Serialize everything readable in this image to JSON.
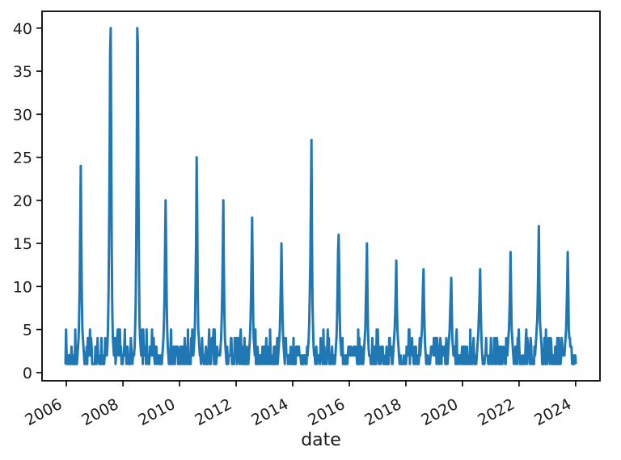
{
  "figure": {
    "kind": "matplotlib-style line plot",
    "background_color": "#ffffff",
    "axis_color": "#000000",
    "tick_label_color": "#1a1a1a"
  },
  "chart_data": {
    "type": "line",
    "title": "",
    "xlabel": "date",
    "ylabel": "",
    "grid": false,
    "legend": null,
    "line_color": "#1f77b4",
    "xlim": [
      2005.14,
      2024.86
    ],
    "ylim": [
      -0.95,
      41.95
    ],
    "x_tick_values": [
      2006,
      2008,
      2010,
      2012,
      2014,
      2016,
      2018,
      2020,
      2022,
      2024
    ],
    "x_tick_labels": [
      "2006",
      "2008",
      "2010",
      "2012",
      "2014",
      "2016",
      "2018",
      "2020",
      "2022",
      "2024"
    ],
    "y_tick_values": [
      0,
      5,
      10,
      15,
      20,
      25,
      30,
      35,
      40
    ],
    "y_tick_labels": [
      "0",
      "5",
      "10",
      "15",
      "20",
      "25",
      "30",
      "35",
      "40"
    ],
    "sampling": "weekly",
    "x_start": 2005.95,
    "x_end": 2024.02,
    "baseline_description": "noisy integer baseline between 1 and 3 with occasional bumps to 4-5",
    "noise_seed": 7,
    "noise_weights": [
      [
        1,
        0.46
      ],
      [
        2,
        0.27
      ],
      [
        3,
        0.15
      ],
      [
        4,
        0.08
      ],
      [
        5,
        0.04
      ]
    ],
    "seasons": [
      {
        "peak_time": 2006.51,
        "peak": 24,
        "profile": [
          2,
          3,
          4,
          6,
          10,
          17,
          24,
          16,
          9,
          5,
          4,
          3,
          2
        ]
      },
      {
        "peak_time": 2007.57,
        "peak": 40,
        "profile": [
          2,
          3,
          5,
          9,
          15,
          24,
          37,
          40,
          28,
          14,
          7,
          4,
          3,
          2
        ]
      },
      {
        "peak_time": 2008.51,
        "peak": 40,
        "profile": [
          2,
          3,
          5,
          8,
          15,
          26,
          40,
          38,
          22,
          12,
          6,
          4,
          3,
          2
        ]
      },
      {
        "peak_time": 2009.51,
        "peak": 20,
        "profile": [
          2,
          3,
          4,
          6,
          9,
          15,
          20,
          14,
          8,
          5,
          3,
          2
        ]
      },
      {
        "peak_time": 2010.6,
        "peak": 25,
        "profile": [
          2,
          3,
          4,
          6,
          10,
          15,
          25,
          18,
          10,
          5,
          4,
          3,
          2
        ]
      },
      {
        "peak_time": 2011.54,
        "peak": 20,
        "profile": [
          2,
          3,
          4,
          6,
          9,
          14,
          20,
          13,
          7,
          4,
          3,
          2
        ]
      },
      {
        "peak_time": 2012.57,
        "peak": 18,
        "profile": [
          2,
          3,
          4,
          6,
          9,
          13,
          18,
          12,
          6,
          4,
          3,
          2
        ]
      },
      {
        "peak_time": 2013.6,
        "peak": 15,
        "profile": [
          2,
          3,
          4,
          5,
          8,
          11,
          15,
          10,
          6,
          4,
          3,
          2
        ]
      },
      {
        "peak_time": 2014.66,
        "peak": 27,
        "profile": [
          2,
          3,
          4,
          6,
          9,
          13,
          20,
          27,
          16,
          8,
          5,
          3,
          2
        ]
      },
      {
        "peak_time": 2015.63,
        "peak": 16,
        "profile": [
          2,
          3,
          4,
          6,
          10,
          14,
          16,
          12,
          7,
          4,
          3,
          2
        ]
      },
      {
        "peak_time": 2016.63,
        "peak": 15,
        "profile": [
          2,
          3,
          4,
          5,
          8,
          11,
          15,
          9,
          5,
          3,
          2
        ]
      },
      {
        "peak_time": 2017.66,
        "peak": 13,
        "profile": [
          2,
          3,
          4,
          5,
          7,
          10,
          13,
          8,
          5,
          4,
          3,
          2
        ]
      },
      {
        "peak_time": 2018.63,
        "peak": 12,
        "profile": [
          2,
          3,
          4,
          5,
          7,
          10,
          12,
          8,
          5,
          3,
          2
        ]
      },
      {
        "peak_time": 2019.6,
        "peak": 11,
        "profile": [
          2,
          3,
          4,
          5,
          7,
          9,
          11,
          7,
          4,
          3,
          2
        ]
      },
      {
        "peak_time": 2020.63,
        "peak": 12,
        "profile": [
          2,
          3,
          4,
          5,
          7,
          9,
          12,
          8,
          5,
          3,
          2
        ]
      },
      {
        "peak_time": 2021.7,
        "peak": 14,
        "profile": [
          2,
          3,
          4,
          5,
          7,
          10,
          14,
          9,
          5,
          4,
          3,
          2
        ]
      },
      {
        "peak_time": 2022.7,
        "peak": 17,
        "profile": [
          2,
          3,
          4,
          5,
          6,
          9,
          13,
          17,
          10,
          6,
          5,
          4,
          3
        ]
      },
      {
        "peak_time": 2023.71,
        "peak": 14,
        "profile": [
          2,
          3,
          4,
          5,
          7,
          10,
          14,
          10,
          5,
          4,
          4,
          3,
          3
        ]
      }
    ]
  }
}
